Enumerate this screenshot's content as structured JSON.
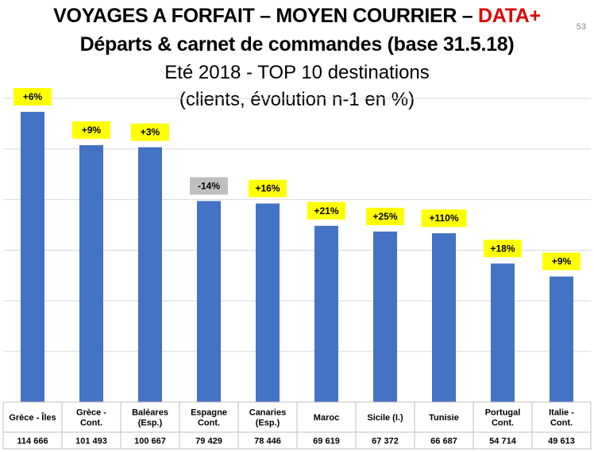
{
  "header": {
    "title_main": "VOYAGES A FORFAIT – MOYEN COURRIER – ",
    "title_highlight": "DATA+",
    "title_line2": "Départs & carnet de commandes (base 31.5.18)",
    "subtitle_line1": "Eté 2018 - TOP 10 destinations",
    "subtitle_line2": "(clients, évolution n-1 en %)",
    "page_number": "53"
  },
  "colors": {
    "bar": "#4472c4",
    "label_positive": "#ffff00",
    "label_negative": "#bfbfbf",
    "title_highlight": "#e00000"
  },
  "chart_data": {
    "type": "bar",
    "title": "Eté 2018 - TOP 10 destinations",
    "categories": [
      [
        "Grèce - Îles"
      ],
      [
        "Grèce -",
        "Cont."
      ],
      [
        "Baléares",
        "(Esp.)"
      ],
      [
        "Espagne",
        "Cont."
      ],
      [
        "Canaries",
        "(Esp.)"
      ],
      [
        "Maroc"
      ],
      [
        "Sicile (I.)"
      ],
      [
        "Tunisie"
      ],
      [
        "Portugal",
        "Cont."
      ],
      [
        "Italie -",
        "Cont."
      ]
    ],
    "values": [
      114666,
      101493,
      100667,
      79429,
      78446,
      69619,
      67372,
      66687,
      54714,
      49613
    ],
    "value_labels": [
      "114 666",
      "101 493",
      "100 667",
      "79 429",
      "78 446",
      "69 619",
      "67 372",
      "66 687",
      "54 714",
      "49 613"
    ],
    "data_labels": [
      "+6%",
      "+9%",
      "+3%",
      "-14%",
      "+16%",
      "+21%",
      "+25%",
      "+110%",
      "+18%",
      "+9%"
    ],
    "ylim": [
      0,
      120000
    ],
    "grid": true,
    "legend": "none"
  }
}
